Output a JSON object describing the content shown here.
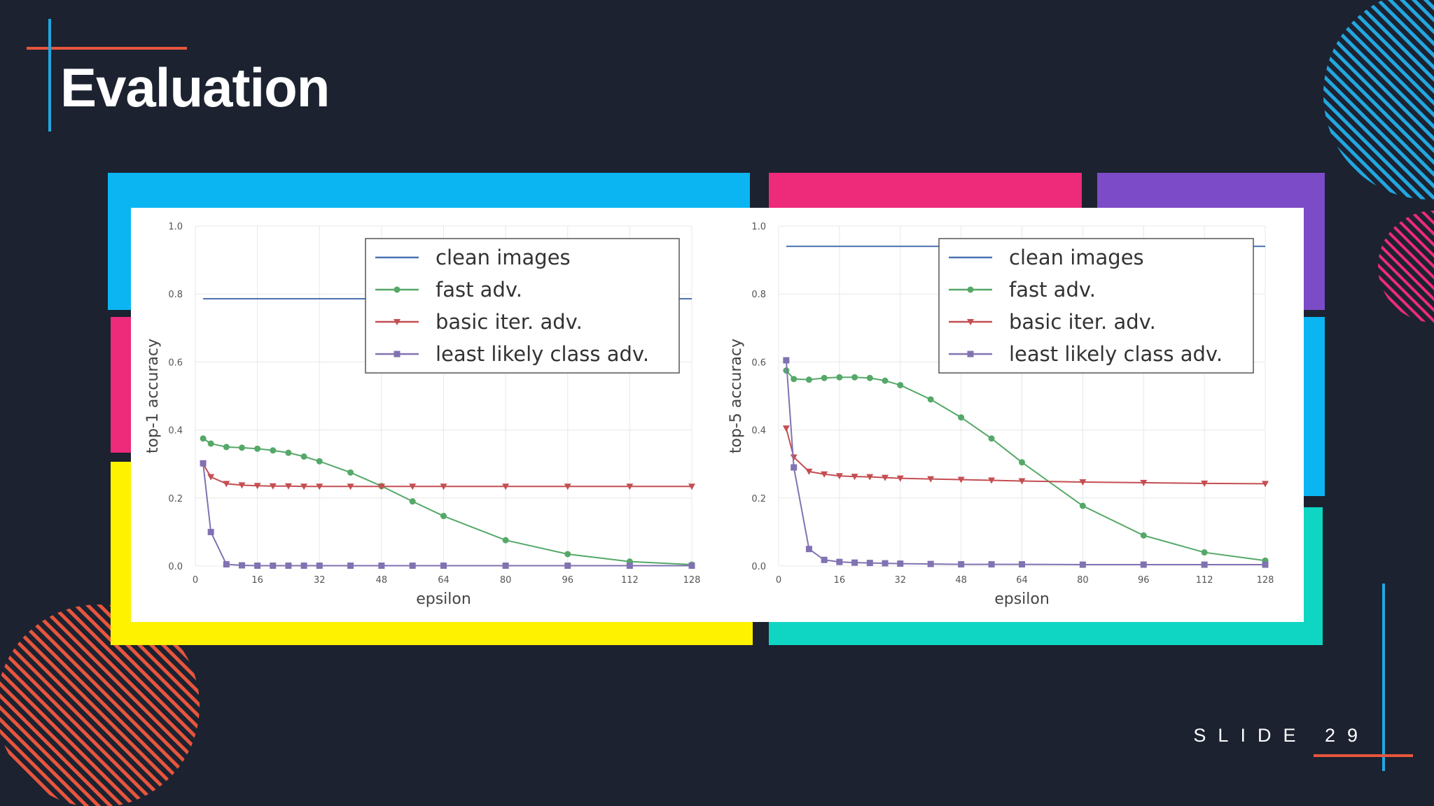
{
  "slide": {
    "title": "Evaluation",
    "slide_number_text": "SLIDE 29"
  },
  "colors": {
    "background": "#1c2230",
    "accent_orange": "#e8553d",
    "accent_blue": "#22a7e0",
    "frame_blue": "#0bb5f2",
    "frame_pink": "#ee2a7b",
    "frame_purple": "#7c4bc8",
    "frame_yellow": "#fff200",
    "frame_teal": "#0fd6c2",
    "series_clean": "#4c72b0",
    "series_fast": "#55a868",
    "series_basic": "#c44e52",
    "series_ll": "#8172b2"
  },
  "chart_data": [
    {
      "type": "line",
      "xlabel": "epsilon",
      "ylabel": "top-1 accuracy",
      "xlim": [
        0,
        128
      ],
      "ylim": [
        0.0,
        1.0
      ],
      "xticks": [
        "0",
        "16",
        "32",
        "48",
        "64",
        "80",
        "96",
        "112",
        "128"
      ],
      "yticks": [
        "0.0",
        "0.2",
        "0.4",
        "0.6",
        "0.8",
        "1.0"
      ],
      "grid": true,
      "legend_position": "top-right",
      "series": [
        {
          "name": "clean images",
          "key": "clean",
          "marker": "none",
          "x": [
            2,
            128
          ],
          "y": [
            0.786,
            0.786
          ]
        },
        {
          "name": "fast adv.",
          "key": "fast",
          "marker": "circle",
          "x": [
            2,
            4,
            8,
            12,
            16,
            20,
            24,
            28,
            32,
            40,
            48,
            56,
            64,
            80,
            96,
            112,
            128
          ],
          "y": [
            0.375,
            0.36,
            0.35,
            0.348,
            0.345,
            0.34,
            0.333,
            0.322,
            0.308,
            0.275,
            0.235,
            0.19,
            0.147,
            0.076,
            0.035,
            0.013,
            0.004
          ]
        },
        {
          "name": "basic iter. adv.",
          "key": "basic",
          "marker": "triangle",
          "x": [
            2,
            4,
            8,
            12,
            16,
            20,
            24,
            28,
            32,
            40,
            48,
            56,
            64,
            80,
            96,
            112,
            128
          ],
          "y": [
            0.3,
            0.262,
            0.242,
            0.238,
            0.236,
            0.235,
            0.235,
            0.234,
            0.234,
            0.234,
            0.234,
            0.234,
            0.234,
            0.234,
            0.234,
            0.234,
            0.234
          ]
        },
        {
          "name": "least likely class adv.",
          "key": "ll",
          "marker": "square",
          "x": [
            2,
            4,
            8,
            12,
            16,
            20,
            24,
            28,
            32,
            40,
            48,
            56,
            64,
            80,
            96,
            112,
            128
          ],
          "y": [
            0.302,
            0.1,
            0.005,
            0.002,
            0.001,
            0.001,
            0.001,
            0.001,
            0.001,
            0.001,
            0.001,
            0.001,
            0.001,
            0.001,
            0.001,
            0.001,
            0.001
          ]
        }
      ]
    },
    {
      "type": "line",
      "xlabel": "epsilon",
      "ylabel": "top-5 accuracy",
      "xlim": [
        0,
        128
      ],
      "ylim": [
        0.0,
        1.0
      ],
      "xticks": [
        "0",
        "16",
        "32",
        "48",
        "64",
        "80",
        "96",
        "112",
        "128"
      ],
      "yticks": [
        "0.0",
        "0.2",
        "0.4",
        "0.6",
        "0.8",
        "1.0"
      ],
      "grid": true,
      "legend_position": "top-right",
      "series": [
        {
          "name": "clean images",
          "key": "clean",
          "marker": "none",
          "x": [
            2,
            128
          ],
          "y": [
            0.94,
            0.94
          ]
        },
        {
          "name": "fast adv.",
          "key": "fast",
          "marker": "circle",
          "x": [
            2,
            4,
            8,
            12,
            16,
            20,
            24,
            28,
            32,
            40,
            48,
            56,
            64,
            80,
            96,
            112,
            128
          ],
          "y": [
            0.575,
            0.55,
            0.548,
            0.553,
            0.555,
            0.555,
            0.553,
            0.545,
            0.532,
            0.49,
            0.437,
            0.375,
            0.305,
            0.177,
            0.09,
            0.04,
            0.016
          ]
        },
        {
          "name": "basic iter. adv.",
          "key": "basic",
          "marker": "triangle",
          "x": [
            2,
            4,
            8,
            12,
            16,
            20,
            24,
            28,
            32,
            40,
            48,
            56,
            64,
            80,
            96,
            112,
            128
          ],
          "y": [
            0.405,
            0.32,
            0.278,
            0.27,
            0.265,
            0.263,
            0.262,
            0.26,
            0.258,
            0.256,
            0.254,
            0.252,
            0.25,
            0.247,
            0.245,
            0.243,
            0.242
          ]
        },
        {
          "name": "least likely class adv.",
          "key": "ll",
          "marker": "square",
          "x": [
            2,
            4,
            8,
            12,
            16,
            20,
            24,
            28,
            32,
            40,
            48,
            56,
            64,
            80,
            96,
            112,
            128
          ],
          "y": [
            0.605,
            0.29,
            0.05,
            0.018,
            0.012,
            0.01,
            0.009,
            0.008,
            0.007,
            0.006,
            0.005,
            0.005,
            0.005,
            0.004,
            0.004,
            0.004,
            0.004
          ]
        }
      ]
    }
  ]
}
